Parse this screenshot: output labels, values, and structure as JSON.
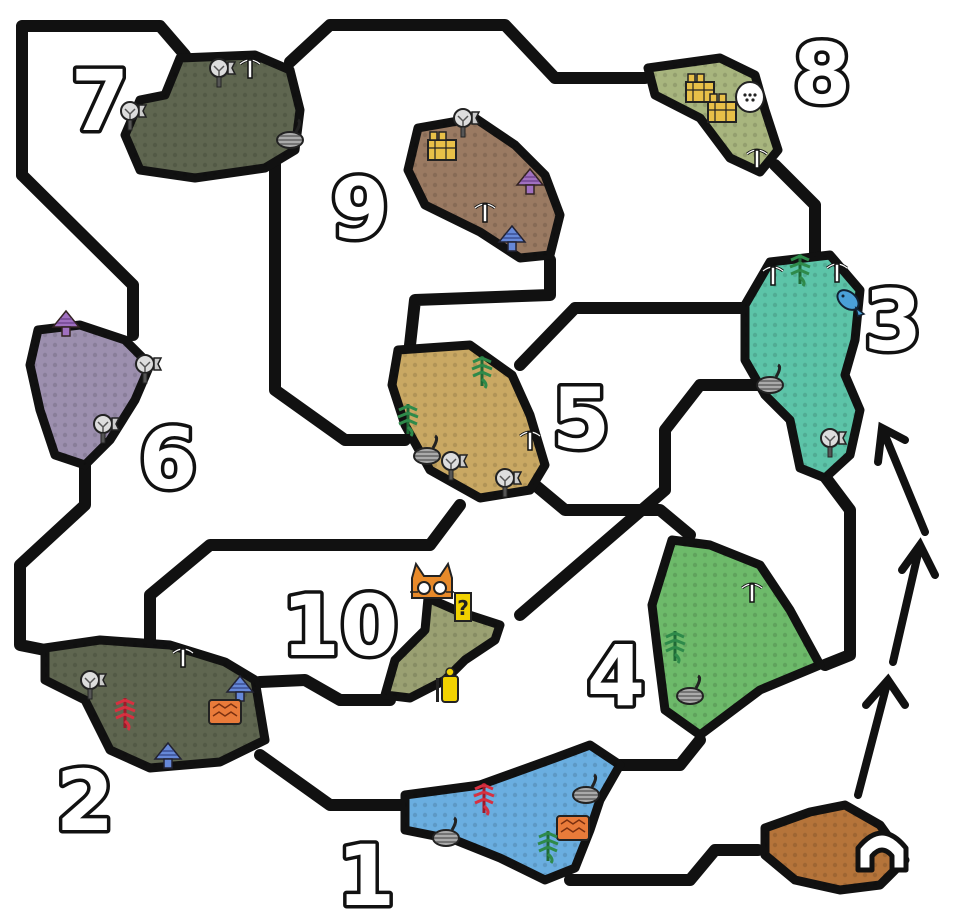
{
  "map": {
    "zones": [
      {
        "id": "zone-1",
        "label": "1",
        "color": "#6aaee0"
      },
      {
        "id": "zone-2",
        "label": "2",
        "color": "#5f6650"
      },
      {
        "id": "zone-3",
        "label": "3",
        "color": "#5cc4a8"
      },
      {
        "id": "zone-4",
        "label": "4",
        "color": "#6dba6a"
      },
      {
        "id": "zone-5",
        "label": "5",
        "color": "#c9a863"
      },
      {
        "id": "zone-6",
        "label": "6",
        "color": "#9c8fae"
      },
      {
        "id": "zone-7",
        "label": "7",
        "color": "#5f6650"
      },
      {
        "id": "zone-8",
        "label": "8",
        "color": "#a8b57e"
      },
      {
        "id": "zone-9",
        "label": "9",
        "color": "#9a7a62"
      },
      {
        "id": "zone-10",
        "label": "10",
        "color": "#9aa072"
      },
      {
        "id": "camp",
        "label": "",
        "color": "#b5743a"
      }
    ],
    "icon_types": {
      "pickaxe": "mining-point",
      "bug": "bug-net-spot",
      "bone": "bonepile",
      "mushroom": "mushroom",
      "herb": "herb",
      "fish": "fishing-spot",
      "honey": "honey",
      "egg": "egg",
      "nest": "wyvern-nest",
      "felyne": "felyne-comrade",
      "quest": "quest-marker",
      "hunter": "hunter"
    },
    "quest_mark": "?",
    "colors": {
      "path": "#111111",
      "arrow": "#111111",
      "herb_green": "#2e8a4a",
      "herb_red": "#d63040",
      "mushroom_blue": "#6688d8",
      "mushroom_purple": "#a070c0",
      "honey": "#e8a830",
      "fish": "#4aa0d8"
    }
  }
}
